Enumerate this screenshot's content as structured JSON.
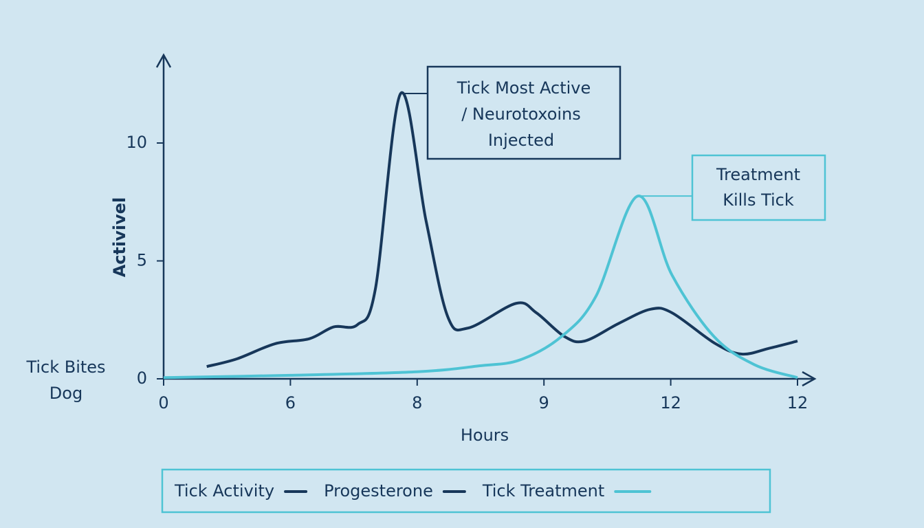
{
  "chart_data": {
    "type": "line",
    "y_label": "Activivel",
    "x_label": "Hours",
    "xlim": [
      0,
      5.14
    ],
    "ylim": [
      0,
      13.7
    ],
    "xticks": [
      {
        "value": 0,
        "label": "0"
      },
      {
        "value": 1,
        "label": "6"
      },
      {
        "value": 2,
        "label": "8"
      },
      {
        "value": 3,
        "label": "9"
      },
      {
        "value": 4,
        "label": "12"
      },
      {
        "value": 5,
        "label": "12"
      }
    ],
    "yticks": [
      0,
      5,
      10
    ],
    "series": [
      {
        "color": "#17375a",
        "x": [
          0.34,
          0.58,
          0.88,
          1.15,
          1.34,
          1.53,
          1.67,
          1.87,
          2.07,
          2.24,
          2.4,
          2.78,
          2.94,
          3.16,
          3.32,
          3.59,
          3.84,
          4.01,
          4.35,
          4.56,
          4.78,
          5
        ],
        "values": [
          0.52,
          0.85,
          1.49,
          1.7,
          2.2,
          2.3,
          3.8,
          12.1,
          6.7,
          2.65,
          2.15,
          3.2,
          2.8,
          1.8,
          1.6,
          2.35,
          2.95,
          2.8,
          1.5,
          1.05,
          1.3,
          1.6
        ]
      },
      {
        "color": "#4ec3d4",
        "x": [
          0,
          1,
          2,
          2.49,
          2.81,
          3.14,
          3.41,
          3.74,
          4.01,
          4.34,
          4.66,
          5
        ],
        "values": [
          0.05,
          0.15,
          0.3,
          0.55,
          0.8,
          1.8,
          3.5,
          7.75,
          4.4,
          1.8,
          0.6,
          0.05
        ]
      }
    ],
    "legend": [
      {
        "label": "Tick Activity",
        "color": "#17375a"
      },
      {
        "label": "Progesterone",
        "color": "#17375a"
      },
      {
        "label": "Tick Treatment",
        "color": "#4ec3d4"
      }
    ],
    "annotations": [
      {
        "lines": [
          "Tick Most Active",
          "/ Neurotoxoins",
          "Injected"
        ],
        "x": 1.87,
        "y": 12.1,
        "color": "#17375a"
      },
      {
        "lines": [
          "Treatment",
          "Kills Tick"
        ],
        "x": 3.74,
        "y": 7.75,
        "color": "#4ec3d4"
      },
      {
        "lines": [
          "Tick Bites",
          "Dog"
        ]
      }
    ]
  }
}
